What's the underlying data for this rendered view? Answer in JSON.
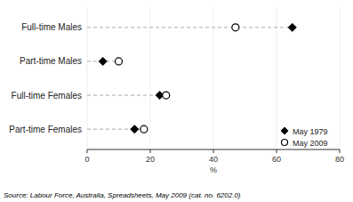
{
  "chart_data": {
    "type": "dot",
    "categories": [
      "Full-time Males",
      "Part-time Males",
      "Full-time Females",
      "Part-time Females"
    ],
    "series": [
      {
        "name": "May 1979",
        "color": "black",
        "marker": "diamond",
        "values": [
          65,
          5,
          23,
          15
        ]
      },
      {
        "name": "May 2009",
        "color": "black",
        "marker": "circle",
        "values": [
          47,
          10,
          25,
          18
        ]
      }
    ],
    "x_label": "%",
    "xlim": [
      0,
      80
    ],
    "xticks": [
      0,
      20,
      40,
      60,
      80
    ],
    "legend": "lower right",
    "annotations": [
      "Source: Labour Force, Australia, Spreadsheets, May 2009 (cat. no. 6202.0)"
    ]
  }
}
